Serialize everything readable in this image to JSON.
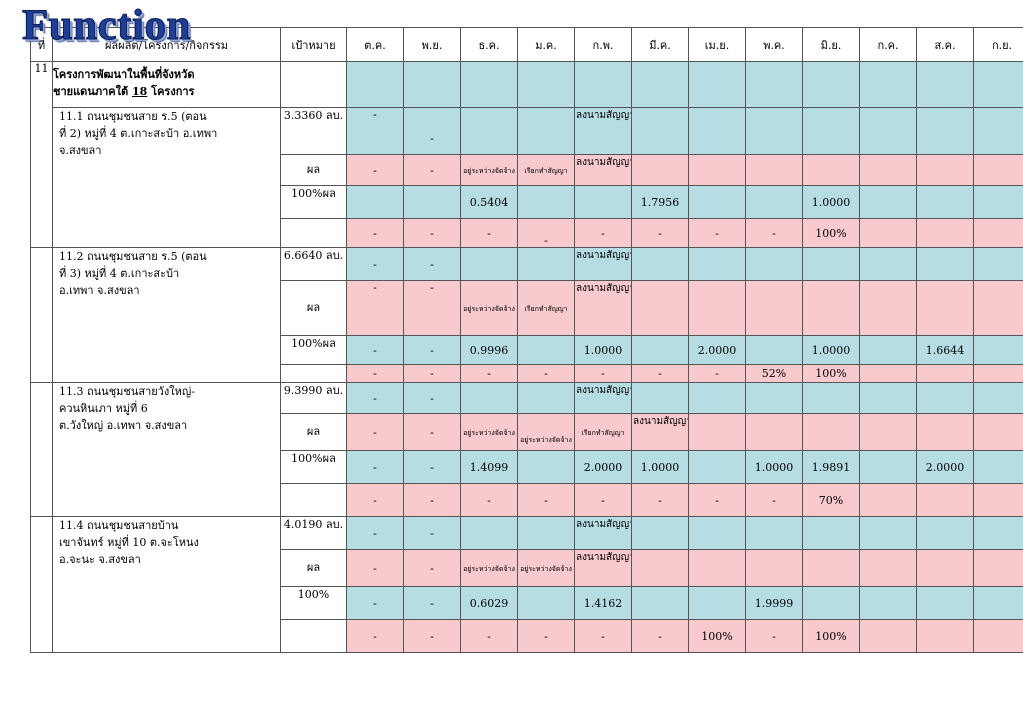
{
  "logo_text": "Function",
  "headers": {
    "no": "ที่",
    "project": "ผลผลิต/โครงการ/กิจกรรม",
    "target": "เป้าหมาย",
    "months": [
      "ต.ค.",
      "พ.ย.",
      "ธ.ค.",
      "ม.ค.",
      "ก.พ.",
      "มี.ค.",
      "เม.ย.",
      "พ.ค.",
      "มิ.ย.",
      "ก.ค.",
      "ส.ค.",
      "ก.ย."
    ]
  },
  "section": {
    "no": "11",
    "title_line1": "โครงการพัฒนาในพื้นที่จังหวัด",
    "title_line2_pre": "ชายแดนภาคใต้",
    "title_line2_num": "18",
    "title_line2_post": "โครงการ"
  },
  "projects": [
    {
      "name_lines": [
        "11.1 ถนนชุมชนสาย ร.5 (ตอน",
        "ที่ 2) หมู่ที่ 4 ต.เกาะสะบ้า อ.เทพา",
        "จ.สงขลา"
      ],
      "target": "3.3360 ลบ.",
      "result_label": "ผล",
      "percent_label": "100%",
      "result_label2": "ผล",
      "rows": {
        "plan": [
          "-",
          "-",
          "",
          "",
          "ลงนามสัญญา",
          "",
          "",
          "",
          "",
          "",
          "",
          ""
        ],
        "result": [
          "-",
          "-",
          "อยู่ระหว่างจัดจ้าง",
          "เรียกทำสัญญา",
          "ลงนามสัญญา",
          "",
          "",
          "",
          "",
          "",
          "",
          ""
        ],
        "money_plan": [
          "",
          "",
          "0.5404",
          "",
          "",
          "1.7956",
          "",
          "",
          "1.0000",
          "",
          "",
          ""
        ],
        "money_result": [
          "-",
          "-",
          "-",
          "-",
          "-",
          "-",
          "-",
          "-",
          "100%",
          "",
          "",
          ""
        ]
      }
    },
    {
      "name_lines": [
        "11.2 ถนนชุมชนสาย ร.5 (ตอน",
        "ที่ 3)  หมู่ที่ 4  ต.เกาะสะบ้า",
        " อ.เทพา จ.สงขลา"
      ],
      "target": "6.6640 ลบ.",
      "result_label": "ผล",
      "percent_label": "100%",
      "result_label2": "ผล",
      "rows": {
        "plan": [
          "-",
          "-",
          "",
          "",
          "ลงนามสัญญา",
          "",
          "",
          "",
          "",
          "",
          "",
          ""
        ],
        "result": [
          "-",
          "-",
          "อยู่ระหว่างจัดจ้าง",
          "เรียกทำสัญญา",
          "ลงนามสัญญา",
          "",
          "",
          "",
          "",
          "",
          "",
          ""
        ],
        "money_plan": [
          "-",
          "-",
          "0.9996",
          "",
          "1.0000",
          "",
          "2.0000",
          "",
          "1.0000",
          "",
          "1.6644",
          ""
        ],
        "money_result": [
          "-",
          "-",
          "-",
          "-",
          "-",
          "-",
          "-",
          "52%",
          "100%",
          "",
          "",
          ""
        ]
      }
    },
    {
      "name_lines": [
        "11.3 ถนนชุมชนสายวังใหญ่-",
        " ควนหินเภา หมู่ที่ 6",
        " ต.วังใหญ่ อ.เทพา จ.สงขลา"
      ],
      "target": "9.3990 ลบ.",
      "result_label": "ผล",
      "percent_label": "100%",
      "result_label2": "ผล",
      "rows": {
        "plan": [
          "-",
          "-",
          "",
          "",
          "ลงนามสัญญา",
          "",
          "",
          "",
          "",
          "",
          "",
          ""
        ],
        "result": [
          "-",
          "-",
          "อยู่ระหว่างจัดจ้าง",
          "อยู่ระหว่างจัดจ้าง",
          "เรียกทำสัญญา",
          "ลงนามสัญญา",
          "",
          "",
          "",
          "",
          "",
          ""
        ],
        "money_plan": [
          "-",
          "-",
          "1.4099",
          "",
          "2.0000",
          "1.0000",
          "",
          "1.0000",
          "1.9891",
          "",
          "2.0000",
          ""
        ],
        "money_result": [
          "-",
          "-",
          "-",
          "-",
          "-",
          "-",
          "-",
          "-",
          "70%",
          "",
          "",
          ""
        ]
      }
    },
    {
      "name_lines": [
        "11.4 ถนนชุมชนสายบ้าน",
        " เขาจันทร์ หมู่ที่ 10  ต.จะโหนง",
        " อ.จะนะ จ.สงขลา"
      ],
      "target": "4.0190 ลบ.",
      "result_label": "ผล",
      "percent_label": "100%",
      "rows": {
        "plan": [
          "-",
          "-",
          "",
          "",
          "ลงนามสัญญา",
          "",
          "",
          "",
          "",
          "",
          "",
          ""
        ],
        "result": [
          "-",
          "-",
          "อยู่ระหว่างจัดจ้าง",
          "อยู่ระหว่างจัดจ้าง",
          "ลงนามสัญญา",
          "",
          "",
          "",
          "",
          "",
          "",
          ""
        ],
        "money_plan": [
          "-",
          "-",
          "0.6029",
          "",
          "1.4162",
          "",
          "",
          "1.9999",
          "",
          "",
          "",
          ""
        ],
        "money_result": [
          "-",
          "-",
          "-",
          "-",
          "-",
          "-",
          "100%",
          "-",
          "100%",
          "",
          "",
          ""
        ]
      }
    }
  ]
}
